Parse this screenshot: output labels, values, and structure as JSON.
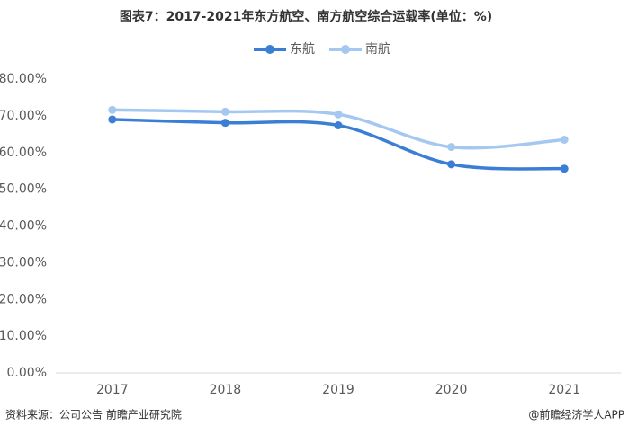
{
  "chart_data": {
    "type": "line",
    "title": "图表7：2017-2021年东方航空、南方航空综合运载率(单位：%)",
    "categories": [
      "2017",
      "2018",
      "2019",
      "2020",
      "2021"
    ],
    "series": [
      {
        "name": "东航",
        "color": "#3a7fd5",
        "values": [
          69.0,
          68.1,
          67.4,
          56.8,
          55.6
        ]
      },
      {
        "name": "南航",
        "color": "#a4c8f0",
        "values": [
          71.6,
          71.1,
          70.4,
          61.5,
          63.5
        ]
      }
    ],
    "ylim": [
      0,
      80
    ],
    "yticks": [
      {
        "value": 0,
        "label": "0.00%"
      },
      {
        "value": 10,
        "label": "10.00%"
      },
      {
        "value": 20,
        "label": "20.00%"
      },
      {
        "value": 30,
        "label": "30.00%"
      },
      {
        "value": 40,
        "label": "40.00%"
      },
      {
        "value": 50,
        "label": "50.00%"
      },
      {
        "value": 60,
        "label": "60.00%"
      },
      {
        "value": 70,
        "label": "70.00%"
      },
      {
        "value": 80,
        "label": "80.00%"
      }
    ],
    "grid": false,
    "source": "资料来源：公司公告 前瞻产业研究院",
    "credit": "@前瞻经济学人APP"
  }
}
